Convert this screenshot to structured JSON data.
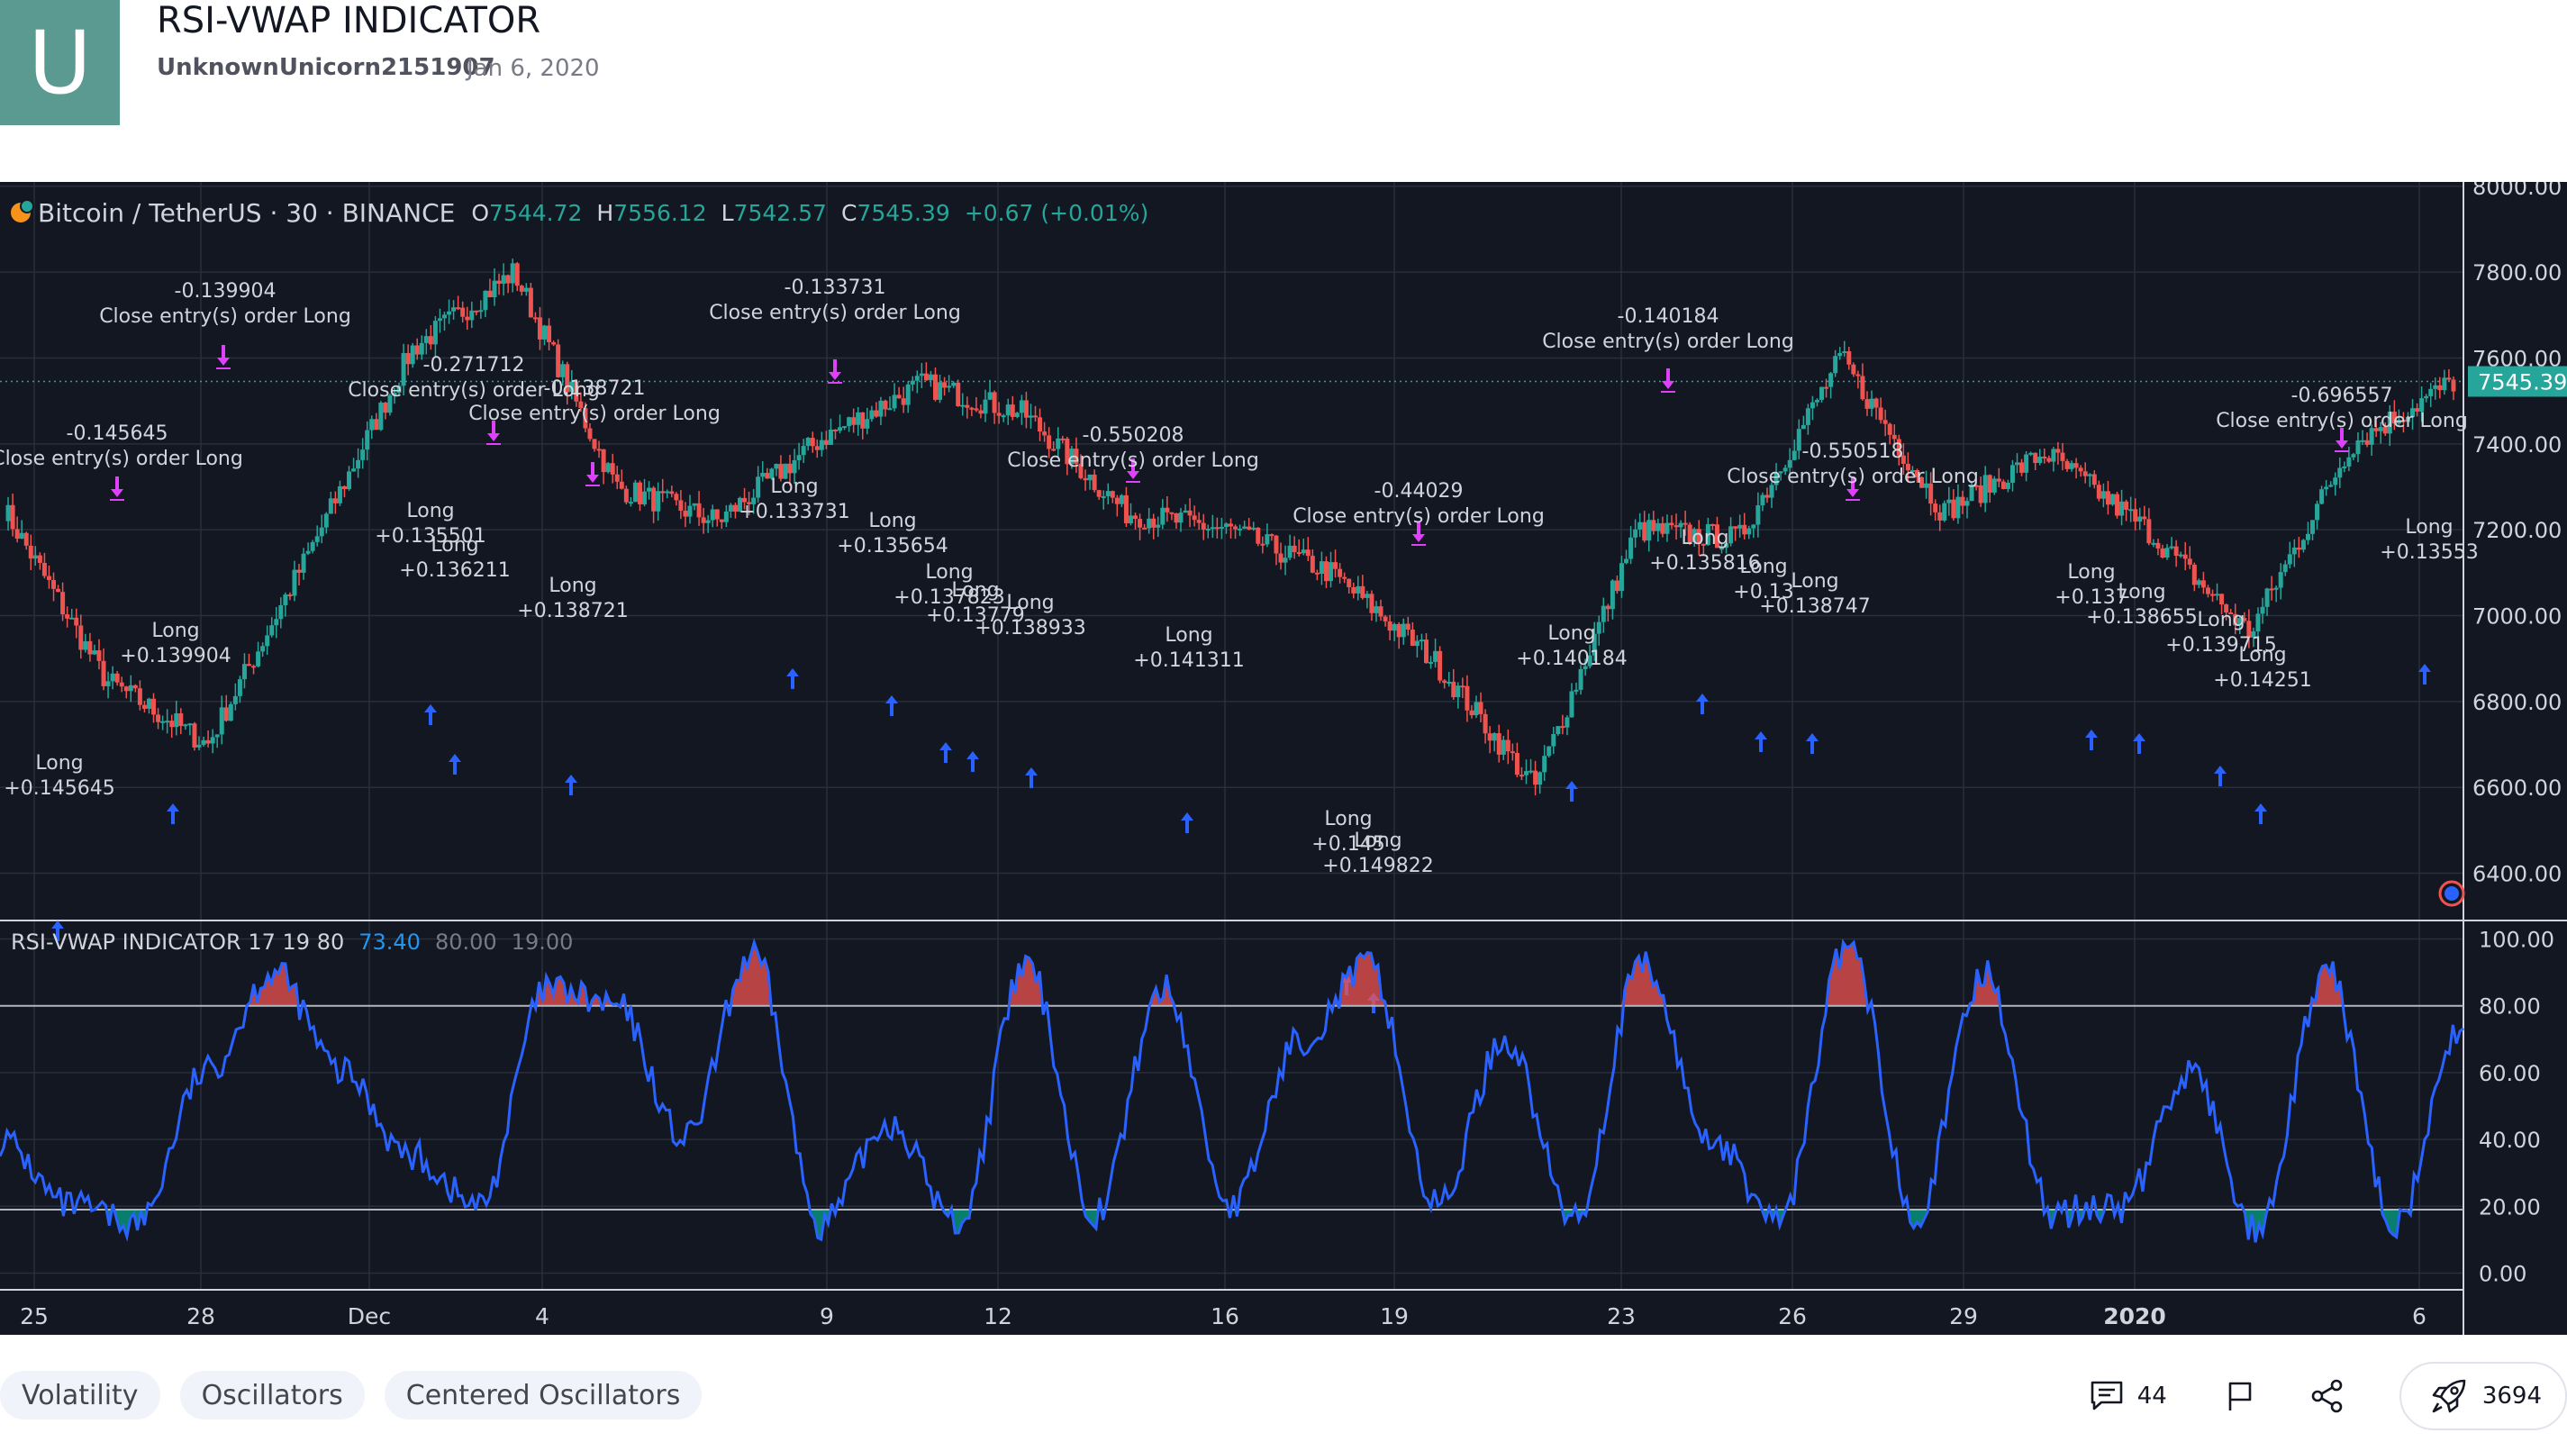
{
  "header": {
    "avatar_letter": "U",
    "title": "RSI-VWAP INDICATOR",
    "author": "UnknownUnicorn2151907",
    "date": "Jan 6, 2020"
  },
  "legend": {
    "symbol": "Bitcoin / TetherUS · 30 · BINANCE",
    "o_label": "O",
    "o_value": "7544.72",
    "h_label": "H",
    "h_value": "7556.12",
    "l_label": "L",
    "l_value": "7542.57",
    "c_label": "C",
    "c_value": "7545.39",
    "change": "+0.67 (+0.01%)"
  },
  "indicator_legend": {
    "name": "RSI-VWAP INDICATOR 17 19 80",
    "value": "73.40",
    "overbought": "80.00",
    "oversold": "19.00"
  },
  "colors": {
    "background": "#131722",
    "grid": "#2a2e39",
    "candle_up": "#26a69a",
    "candle_down": "#ef5350",
    "long_marker": "#2962ff",
    "close_marker": "#e040fb",
    "rsi_line": "#2962ff",
    "overbought_fill": "#ef5350",
    "oversold_fill": "#089981",
    "price_tag": "#26a69a"
  },
  "chart_data": [
    {
      "type": "candlestick",
      "title": "Bitcoin / TetherUS · 30 · BINANCE",
      "x_ticks": [
        "25",
        "28",
        "Dec",
        "4",
        "9",
        "12",
        "16",
        "19",
        "23",
        "26",
        "29",
        "2020",
        "6"
      ],
      "y_ticks": [
        "8000.00",
        "7800.00",
        "7600.00",
        "7400.00",
        "7200.00",
        "7000.00",
        "6800.00",
        "6600.00",
        "6400.00"
      ],
      "ylim": [
        6290,
        8010
      ],
      "last_price": "7545.39",
      "price_path": [
        {
          "x": "25",
          "y": 7250
        },
        {
          "x": "25",
          "y": 6850
        },
        {
          "x": "25",
          "y": 6700
        },
        {
          "x": "28",
          "y": 7150
        },
        {
          "x": "28",
          "y": 7620
        },
        {
          "x": "Dec",
          "y": 7800
        },
        {
          "x": "Dec",
          "y": 7300
        },
        {
          "x": "4",
          "y": 7220
        },
        {
          "x": "4",
          "y": 7410
        },
        {
          "x": "9",
          "y": 7540
        },
        {
          "x": "9",
          "y": 7470
        },
        {
          "x": "12",
          "y": 7240
        },
        {
          "x": "12",
          "y": 7200
        },
        {
          "x": "16",
          "y": 7100
        },
        {
          "x": "16",
          "y": 6900
        },
        {
          "x": "16",
          "y": 6600
        },
        {
          "x": "19",
          "y": 7200
        },
        {
          "x": "19",
          "y": 7180
        },
        {
          "x": "23",
          "y": 7600
        },
        {
          "x": "26",
          "y": 7240
        },
        {
          "x": "29",
          "y": 7380
        },
        {
          "x": "2020",
          "y": 7200
        },
        {
          "x": "2020",
          "y": 6960
        },
        {
          "x": "2020",
          "y": 7400
        },
        {
          "x": "6",
          "y": 7545
        }
      ],
      "annotations": [
        {
          "kind": "long",
          "lines": [
            "Long",
            "+0.145645"
          ]
        },
        {
          "kind": "long",
          "lines": [
            "Long",
            "+0.139904"
          ]
        },
        {
          "kind": "long",
          "lines": [
            "Long",
            "+0.135501"
          ]
        },
        {
          "kind": "long",
          "lines": [
            "Long",
            "+0.136211"
          ]
        },
        {
          "kind": "long",
          "lines": [
            "Long",
            "+0.138721"
          ]
        },
        {
          "kind": "long",
          "lines": [
            "Long",
            "+0.133731"
          ]
        },
        {
          "kind": "long",
          "lines": [
            "Long",
            "+0.135654"
          ]
        },
        {
          "kind": "long",
          "lines": [
            "Long",
            "+0.137823"
          ]
        },
        {
          "kind": "long",
          "lines": [
            "Long",
            "+0.13779"
          ]
        },
        {
          "kind": "long",
          "lines": [
            "Long",
            "+0.138933"
          ]
        },
        {
          "kind": "long",
          "lines": [
            "Long",
            "+0.141311"
          ]
        },
        {
          "kind": "long",
          "lines": [
            "Long",
            "+0.145"
          ]
        },
        {
          "kind": "long",
          "lines": [
            "Long",
            "+0.149822"
          ]
        },
        {
          "kind": "long",
          "lines": [
            "Long",
            "+0.140184"
          ]
        },
        {
          "kind": "long",
          "lines": [
            "Long",
            "+0.135816"
          ]
        },
        {
          "kind": "long",
          "lines": [
            "Long",
            "+0.13"
          ]
        },
        {
          "kind": "long",
          "lines": [
            "Long",
            "+0.138747"
          ]
        },
        {
          "kind": "long",
          "lines": [
            "Long",
            "+0.137"
          ]
        },
        {
          "kind": "long",
          "lines": [
            "Long",
            "+0.138655"
          ]
        },
        {
          "kind": "long",
          "lines": [
            "Long",
            "+0.139715"
          ]
        },
        {
          "kind": "long",
          "lines": [
            "Long",
            "+0.14251"
          ]
        },
        {
          "kind": "long",
          "lines": [
            "Long",
            "+0.13553"
          ]
        },
        {
          "kind": "close",
          "lines": [
            "-0.145645",
            "Close entry(s) order Long"
          ]
        },
        {
          "kind": "close",
          "lines": [
            "-0.139904",
            "Close entry(s) order Long"
          ]
        },
        {
          "kind": "close",
          "lines": [
            "-0.271712",
            "Close entry(s) order Long"
          ]
        },
        {
          "kind": "close",
          "lines": [
            "-0.138721",
            "Close entry(s) order Long"
          ]
        },
        {
          "kind": "close",
          "lines": [
            "-0.133731",
            "Close entry(s) order Long"
          ]
        },
        {
          "kind": "close",
          "lines": [
            "-0.550208",
            "Close entry(s) order Long"
          ]
        },
        {
          "kind": "close",
          "lines": [
            "-0.44029",
            "Close entry(s) order Long"
          ]
        },
        {
          "kind": "close",
          "lines": [
            "-0.140184",
            "Close entry(s) order Long"
          ]
        },
        {
          "kind": "close",
          "lines": [
            "-0.550518",
            "Close entry(s) order Long"
          ]
        },
        {
          "kind": "close",
          "lines": [
            "-0.696557",
            "Close entry(s) order Long"
          ]
        }
      ]
    },
    {
      "type": "line",
      "title": "RSI-VWAP INDICATOR 17 19 80",
      "y_ticks": [
        "100.00",
        "80.00",
        "60.00",
        "40.00",
        "20.00",
        "0.00"
      ],
      "ylim": [
        -5,
        105
      ],
      "overbought": 80,
      "oversold": 19,
      "series": [
        {
          "name": "RSI-VWAP",
          "values": [
            {
              "x": "25",
              "y": 40
            },
            {
              "x": "25",
              "y": 20
            },
            {
              "x": "25",
              "y": 15
            },
            {
              "x": "25",
              "y": 60
            },
            {
              "x": "25",
              "y": 90
            },
            {
              "x": "25",
              "y": 60
            },
            {
              "x": "25",
              "y": 35
            },
            {
              "x": "28",
              "y": 20
            },
            {
              "x": "28",
              "y": 85
            },
            {
              "x": "28",
              "y": 80
            },
            {
              "x": "28",
              "y": 40
            },
            {
              "x": "Dec",
              "y": 95
            },
            {
              "x": "Dec",
              "y": 15
            },
            {
              "x": "Dec",
              "y": 45
            },
            {
              "x": "4",
              "y": 15
            },
            {
              "x": "4",
              "y": 92
            },
            {
              "x": "9",
              "y": 18
            },
            {
              "x": "9",
              "y": 85
            },
            {
              "x": "12",
              "y": 20
            },
            {
              "x": "12",
              "y": 70
            },
            {
              "x": "16",
              "y": 92
            },
            {
              "x": "16",
              "y": 20
            },
            {
              "x": "16",
              "y": 70
            },
            {
              "x": "19",
              "y": 16
            },
            {
              "x": "19",
              "y": 92
            },
            {
              "x": "19",
              "y": 40
            },
            {
              "x": "23",
              "y": 16
            },
            {
              "x": "23",
              "y": 98
            },
            {
              "x": "26",
              "y": 18
            },
            {
              "x": "26",
              "y": 90
            },
            {
              "x": "29",
              "y": 18
            },
            {
              "x": "2020",
              "y": 20
            },
            {
              "x": "2020",
              "y": 60
            },
            {
              "x": "2020",
              "y": 12
            },
            {
              "x": "2020",
              "y": 90
            },
            {
              "x": "6",
              "y": 15
            },
            {
              "x": "6",
              "y": 73.4
            }
          ]
        }
      ]
    }
  ],
  "tags": [
    "Volatility",
    "Oscillators",
    "Centered Oscillators"
  ],
  "actions": {
    "comments_count": "44",
    "boosts_count": "3694"
  }
}
